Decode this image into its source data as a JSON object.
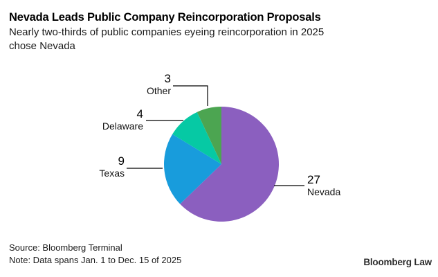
{
  "header": {
    "title": "Nevada Leads Public Company Reincorporation Proposals",
    "subtitle_line1": "Nearly two-thirds of public companies eyeing reincorporation in 2025",
    "subtitle_line2": "chose Nevada"
  },
  "chart_data": {
    "type": "pie",
    "title": "Nevada Leads Public Company Reincorporation Proposals",
    "subtitle": "Nearly two-thirds of public companies eyeing reincorporation in 2025 chose Nevada",
    "categories": [
      "Nevada",
      "Texas",
      "Delaware",
      "Other"
    ],
    "values": [
      27,
      9,
      4,
      3
    ],
    "total": 43,
    "colors": [
      "#8B5FBF",
      "#189CDC",
      "#06C9A4",
      "#4CA551"
    ],
    "start_angle": "12-oclock",
    "direction": "clockwise",
    "legend_position": "callout-labels",
    "labels": [
      {
        "value": "27",
        "name": "Nevada"
      },
      {
        "value": "9",
        "name": "Texas"
      },
      {
        "value": "4",
        "name": "Delaware"
      },
      {
        "value": "3",
        "name": "Other"
      }
    ]
  },
  "footer": {
    "source": "Source: Bloomberg Terminal",
    "note": "Note: Data spans Jan. 1 to Dec. 15 of 2025",
    "brand": "Bloomberg Law"
  }
}
